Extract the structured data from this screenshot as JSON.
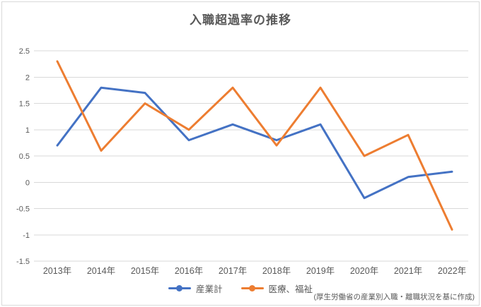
{
  "title": "入職超過率の推移",
  "footnote": "(厚生労働省の産業別入職・離職状況を基に作成)",
  "colors": {
    "background": "#ffffff",
    "border": "#d9d9d9",
    "gridline": "#d9d9d9",
    "text": "#595959",
    "series_blue": "#4472c4",
    "series_orange": "#ed7d31"
  },
  "chart_data": {
    "type": "line",
    "title": "入職超過率の推移",
    "categories": [
      "2013年",
      "2014年",
      "2015年",
      "2016年",
      "2017年",
      "2018年",
      "2019年",
      "2020年",
      "2021年",
      "2022年"
    ],
    "series": [
      {
        "name": "産業計",
        "color": "#4472c4",
        "values": [
          0.7,
          1.8,
          1.7,
          0.8,
          1.1,
          0.8,
          1.1,
          -0.3,
          0.1,
          0.2
        ]
      },
      {
        "name": "医療、福祉",
        "color": "#ed7d31",
        "values": [
          2.3,
          0.6,
          1.5,
          1.0,
          1.8,
          0.7,
          1.8,
          0.5,
          0.9,
          -0.9
        ]
      }
    ],
    "xlabel": "",
    "ylabel": "",
    "ylim": [
      -1.5,
      2.5
    ],
    "yticks": [
      2.5,
      2,
      1.5,
      1,
      0.5,
      0,
      -0.5,
      -1,
      -1.5
    ],
    "grid": true,
    "legend_position": "bottom",
    "source_note": "(厚生労働省の産業別入職・離職状況を基に作成)"
  }
}
